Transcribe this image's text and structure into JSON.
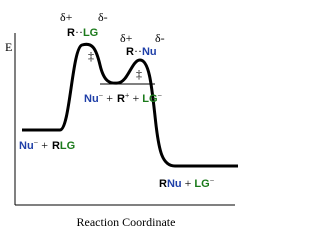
{
  "axis": {
    "y_label": "E",
    "x_label": "Reaction Coordinate"
  },
  "ts1": {
    "delta_plus": "δ+",
    "delta_minus": "δ-",
    "r": "R",
    "dots": "··",
    "lg": "LG",
    "ddagger": "‡"
  },
  "ts2": {
    "delta_plus": "δ+",
    "delta_minus": "δ-",
    "r": "R",
    "dots": "··",
    "nu": "Nu",
    "ddagger": "‡"
  },
  "intermediate": {
    "nu": "Nu",
    "nu_charge": "−",
    "plus1": "+",
    "r": "R",
    "r_charge": "+",
    "plus2": "+",
    "lg": "LG",
    "lg_charge": "−"
  },
  "reactants": {
    "nu": "Nu",
    "nu_charge": "−",
    "plus": "+",
    "r": "R",
    "lg": "LG"
  },
  "products": {
    "r": "R",
    "nu": "Nu",
    "plus": "+",
    "lg": "LG",
    "lg_charge": "−"
  }
}
